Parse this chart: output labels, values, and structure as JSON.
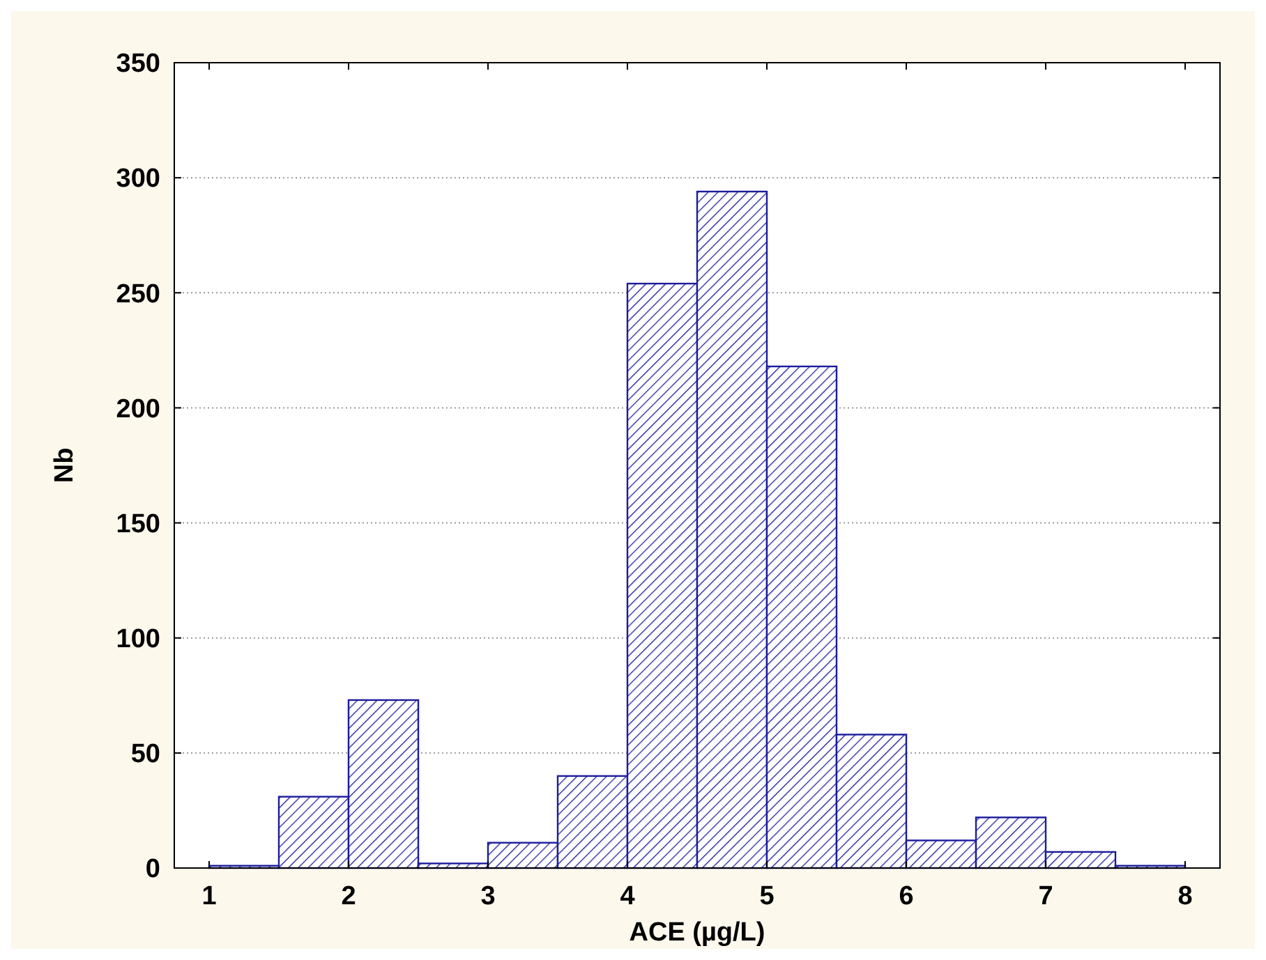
{
  "chart_data": {
    "type": "histogram",
    "xlabel": "ACE (µg/L)",
    "ylabel": "Nb",
    "bins": [
      1,
      1.5,
      2,
      2.5,
      3,
      3.5,
      4,
      4.5,
      5,
      5.5,
      6,
      6.5,
      7,
      7.5,
      8
    ],
    "values": [
      1,
      31,
      73,
      2,
      11,
      40,
      254,
      294,
      218,
      58,
      12,
      22,
      7,
      1
    ],
    "color": "#1c1c9c",
    "xlim": [
      0.75,
      8.25
    ],
    "xticks": [
      1,
      2,
      3,
      4,
      5,
      6,
      7,
      8
    ],
    "ylim": [
      0,
      350
    ],
    "yticks": [
      0,
      50,
      100,
      150,
      200,
      250,
      300,
      350
    ],
    "grid": "y"
  }
}
